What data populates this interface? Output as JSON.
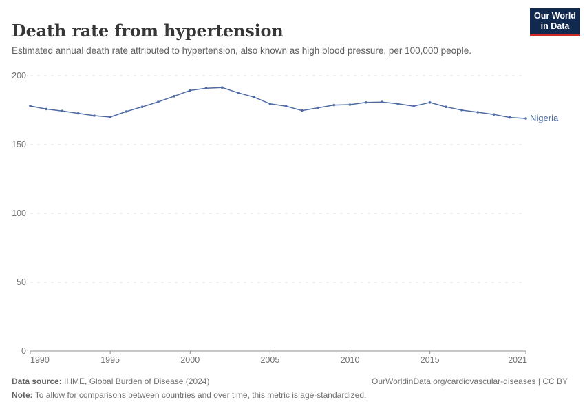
{
  "header": {
    "title": "Death rate from hypertension",
    "subtitle": "Estimated annual death rate attributed to hypertension, also known as high blood pressure, per 100,000 people."
  },
  "logo": {
    "line1": "Our World",
    "line2": "in Data"
  },
  "chart_data": {
    "type": "line",
    "title": "Death rate from hypertension",
    "x": [
      1990,
      1991,
      1992,
      1993,
      1994,
      1995,
      1996,
      1997,
      1998,
      1999,
      2000,
      2001,
      2002,
      2003,
      2004,
      2005,
      2006,
      2007,
      2008,
      2009,
      2010,
      2011,
      2012,
      2013,
      2014,
      2015,
      2016,
      2017,
      2018,
      2019,
      2020,
      2021
    ],
    "series": [
      {
        "name": "Nigeria",
        "color": "#4e6ba3",
        "values": [
          178.0,
          175.8,
          174.4,
          172.7,
          171.0,
          170.0,
          174.0,
          177.4,
          181.0,
          185.1,
          189.3,
          190.9,
          191.4,
          187.6,
          184.4,
          179.6,
          177.9,
          174.7,
          176.7,
          178.7,
          179.0,
          180.6,
          180.9,
          179.6,
          177.9,
          180.6,
          177.4,
          175.0,
          173.5,
          171.9,
          169.7,
          169.0
        ]
      }
    ],
    "xticks": [
      1990,
      1995,
      2000,
      2005,
      2010,
      2015,
      2021
    ],
    "yticks": [
      0,
      50,
      100,
      150,
      200
    ],
    "xlim": [
      1990,
      2021
    ],
    "ylim": [
      0,
      200
    ],
    "grid": "horizontal-dashed",
    "legend_position": "end-of-line-label",
    "end_label": "Nigeria",
    "xlabel": "",
    "ylabel": ""
  },
  "footer": {
    "source_label": "Data source:",
    "source_text": " IHME, Global Burden of Disease (2024)",
    "link_text": "OurWorldinData.org/cardiovascular-diseases | CC BY",
    "note_label": "Note:",
    "note_text": " To allow for comparisons between countries and over time, this metric is age-standardized."
  },
  "colors": {
    "line": "#4e6ba3",
    "grid": "#dedede",
    "axis": "#8f8f8f",
    "tick_text": "#737373",
    "logo_navy": "#12294f",
    "logo_red": "#cc2a26"
  }
}
